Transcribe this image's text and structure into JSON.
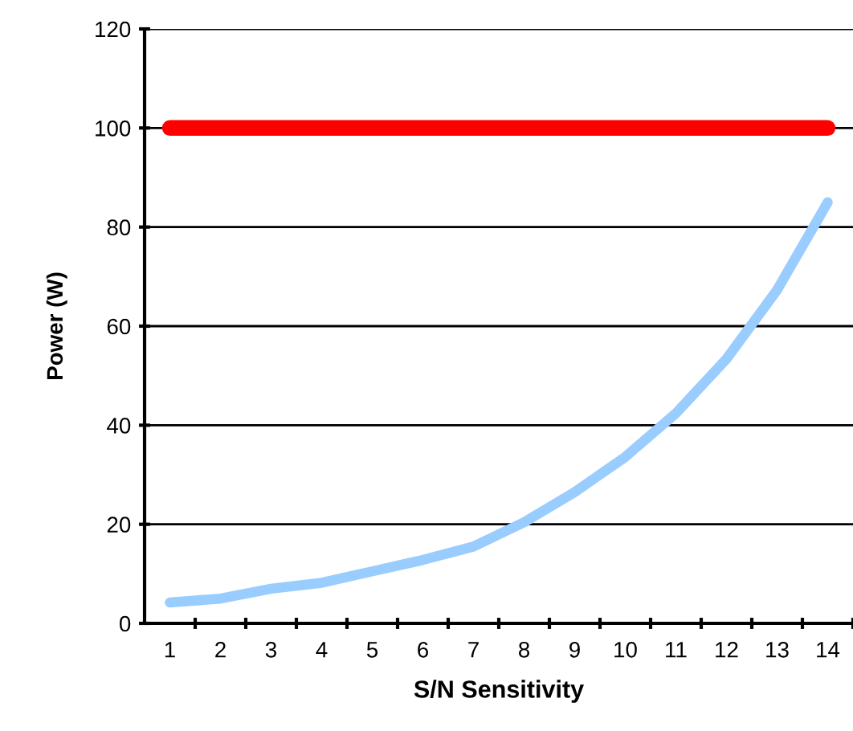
{
  "chart_data": {
    "type": "line",
    "xlabel": "S/N Sensitivity",
    "ylabel": "Power (W)",
    "categories": [
      "1",
      "2",
      "3",
      "4",
      "5",
      "6",
      "7",
      "8",
      "9",
      "10",
      "11",
      "12",
      "13",
      "14"
    ],
    "series": [
      {
        "color": "#ff0000",
        "values": [
          100,
          100,
          100,
          100,
          100,
          100,
          100,
          100,
          100,
          100,
          100,
          100,
          100,
          100
        ]
      },
      {
        "color": "#99ccff",
        "values": [
          4.2,
          5,
          7,
          8.2,
          10.5,
          12.8,
          15.5,
          20.4,
          26.5,
          33.6,
          42.4,
          53.4,
          67.3,
          85
        ]
      }
    ],
    "ylim": [
      0,
      120
    ],
    "yticks": [
      0,
      20,
      40,
      60,
      80,
      100,
      120
    ],
    "grid": "y",
    "legend": false,
    "marker": "none",
    "line_style": "solid"
  }
}
